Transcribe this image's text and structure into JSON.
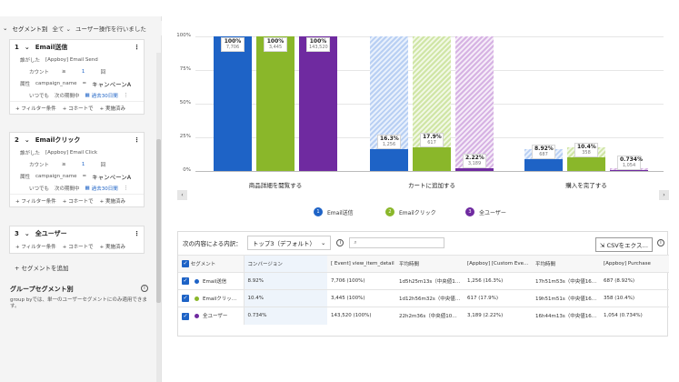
{
  "colors": {
    "blue": "#1e63c6",
    "green": "#8ab72a",
    "purple": "#6f2aa0"
  },
  "segment_panel": {
    "header_title": "セグメント別",
    "header_filter": "全て",
    "header_hint": "ユーザー操作を行いました",
    "segments": [
      {
        "number": "1",
        "name": "Email送信",
        "event_prefix": "誰がした",
        "event": "[Appboy] Email Send",
        "count_label": "カウント",
        "count_op": "≥",
        "count_value": "1",
        "count_unit": "回",
        "attr_label": "属性",
        "attr_name": "campaign_name",
        "attr_op": "=",
        "attr_value": "キャンペーンA",
        "time_label": "いつでも",
        "time_range": "次の期間中",
        "time_value": "過去30日間"
      },
      {
        "number": "2",
        "name": "Emailクリック",
        "event_prefix": "誰がした",
        "event": "[Appboy] Email Click",
        "count_label": "カウント",
        "count_op": "≥",
        "count_value": "1",
        "count_unit": "回",
        "attr_label": "属性",
        "attr_name": "campaign_name",
        "attr_op": "=",
        "attr_value": "キャンペーンA",
        "time_label": "いつでも",
        "time_range": "次の期間中",
        "time_value": "過去30日間"
      },
      {
        "number": "3",
        "name": "全ユーザー"
      }
    ],
    "foot_filter": "+ フィルター条件",
    "foot_cohort": "+ コホートで",
    "foot_done": "+ 実施済み",
    "add_segment": "+ セグメントを追加",
    "group_title": "グループセグメント別",
    "group_desc": "group byでは、単一のユーザーセグメントにのみ適用できます。"
  },
  "chart_data": {
    "type": "bar",
    "categories": [
      "商品詳細を閲覧する",
      "カートに追加する",
      "購入を完了する"
    ],
    "yticks": [
      "100%",
      "75%",
      "50%",
      "25%",
      "0%"
    ],
    "ylim": [
      0,
      100
    ],
    "series": [
      {
        "name": "Email送信",
        "values": [
          100,
          16.3,
          8.92
        ],
        "counts": [
          "7,706",
          "1,256",
          "687"
        ],
        "labels": [
          "100%",
          "16.3%",
          "8.92%"
        ],
        "dropoff_base": [
          100,
          100,
          16.3
        ]
      },
      {
        "name": "Emailクリック",
        "values": [
          100,
          17.9,
          10.4
        ],
        "counts": [
          "3,445",
          "617",
          "358"
        ],
        "labels": [
          "100%",
          "17.9%",
          "10.4%"
        ],
        "dropoff_base": [
          100,
          100,
          17.9
        ]
      },
      {
        "name": "全ユーザー",
        "values": [
          100,
          2.22,
          0.734
        ],
        "counts": [
          "143,520",
          "3,189",
          "1,054"
        ],
        "labels": [
          "100%",
          "2.22%",
          "0.734%"
        ],
        "dropoff_base": [
          100,
          100,
          2.22
        ]
      }
    ],
    "legend_position": "bottom-center"
  },
  "legend": [
    {
      "num": "1",
      "label": "Email送信"
    },
    {
      "num": "2",
      "label": "Emailクリック"
    },
    {
      "num": "3",
      "label": "全ユーザー"
    }
  ],
  "table_panel": {
    "breakdown_label": "次の内容による内訳：",
    "breakdown_value": "トップ3（デフォルト）",
    "csv_label": "CSVをエクス…",
    "headers": [
      "セグメント",
      "コンバージョン",
      "[ Event] view_item_detail",
      "平均時間",
      "[Appboy] [Custom Eve…",
      "平均時間",
      "[Appboy] Purchase"
    ],
    "rows": [
      {
        "name": "Email送信",
        "color": "#1e63c6",
        "cells": [
          "8.92%",
          "7,706 (100%)",
          "1d5h25m13s（中央値1…",
          "1,256 (16.3%)",
          "17h51m53s（中央値16…",
          "687 (8.92%)"
        ]
      },
      {
        "name": "Emailクリッ…",
        "color": "#8ab72a",
        "cells": [
          "10.4%",
          "3,445 (100%)",
          "1d12h56m32s（中央値…",
          "617 (17.9%)",
          "19h51m51s（中央値16…",
          "358 (10.4%)"
        ]
      },
      {
        "name": "全ユーザー",
        "color": "#6f2aa0",
        "cells": [
          "0.734%",
          "143,520 (100%)",
          "22h2m36s（中央値10…",
          "3,189 (2.22%)",
          "16h44m13s（中央値16…",
          "1,054 (0.734%)"
        ]
      }
    ]
  }
}
